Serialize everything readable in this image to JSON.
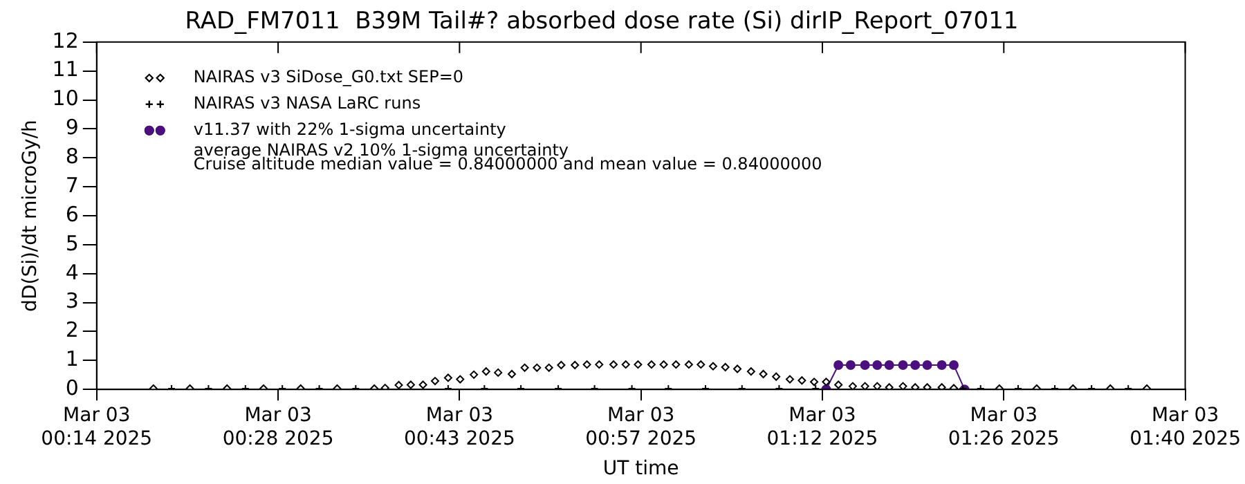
{
  "chart_data": {
    "type": "scatter",
    "title": "RAD_FM7011  B39M Tail#? absorbed dose rate (Si) dirIP_Report_07011",
    "xlabel": "UT time",
    "ylabel": "dD(Si)/dt microGy/h",
    "xlim": [
      "2025-03-03T00:14",
      "2025-03-03T01:40"
    ],
    "xticks": [
      {
        "value": "2025-03-03T00:14",
        "label": "Mar 03\n00:14 2025"
      },
      {
        "value": "2025-03-03T00:28:20",
        "label": "Mar 03\n00:28 2025"
      },
      {
        "value": "2025-03-03T00:42:40",
        "label": "Mar 03\n00:43 2025"
      },
      {
        "value": "2025-03-03T00:57",
        "label": "Mar 03\n00:57 2025"
      },
      {
        "value": "2025-03-03T01:11:20",
        "label": "Mar 03\n01:12 2025"
      },
      {
        "value": "2025-03-03T01:25:40",
        "label": "Mar 03\n01:26 2025"
      },
      {
        "value": "2025-03-03T01:40",
        "label": "Mar 03\n01:40 2025"
      }
    ],
    "ylim": [
      0,
      12
    ],
    "yticks": [
      0,
      1,
      2,
      3,
      4,
      5,
      6,
      7,
      8,
      9,
      10,
      11,
      12
    ],
    "grid": false,
    "legend": "top left",
    "annotations": [
      "average NAIRAS v2 10% 1-sigma uncertainty",
      "Cruise altitude median value = 0.84000000 and mean value = 0.84000000"
    ],
    "series": [
      {
        "name": "NAIRAS v3 SiDose_G0.txt SEP=0",
        "type": "scatter",
        "marker": "diamond",
        "color": "#000000",
        "x": [
          "2025-03-03T00:18:29",
          "2025-03-03T00:21:22",
          "2025-03-03T00:24:18",
          "2025-03-03T00:27:11",
          "2025-03-03T00:30:07",
          "2025-03-03T00:33:00",
          "2025-03-03T00:35:56",
          "2025-03-03T00:36:47",
          "2025-03-03T00:37:52",
          "2025-03-03T00:38:49",
          "2025-03-03T00:39:47",
          "2025-03-03T00:40:44",
          "2025-03-03T00:41:46",
          "2025-03-03T00:42:43",
          "2025-03-03T00:43:48",
          "2025-03-03T00:44:46",
          "2025-03-03T00:45:43",
          "2025-03-03T00:46:48",
          "2025-03-03T00:47:49",
          "2025-03-03T00:48:47",
          "2025-03-03T00:49:44",
          "2025-03-03T00:50:42",
          "2025-03-03T00:51:47",
          "2025-03-03T00:52:44",
          "2025-03-03T00:53:42",
          "2025-03-03T00:54:50",
          "2025-03-03T00:55:48",
          "2025-03-03T00:56:46",
          "2025-03-03T00:57:50",
          "2025-03-03T00:58:48",
          "2025-03-03T00:59:46",
          "2025-03-03T01:00:47",
          "2025-03-03T01:01:44",
          "2025-03-03T01:02:42",
          "2025-03-03T01:03:40",
          "2025-03-03T01:04:37",
          "2025-03-03T01:05:42",
          "2025-03-03T01:06:40",
          "2025-03-03T01:07:41",
          "2025-03-03T01:08:46",
          "2025-03-03T01:09:43",
          "2025-03-03T01:10:41",
          "2025-03-03T01:11:38",
          "2025-03-03T01:12:36",
          "2025-03-03T01:13:44",
          "2025-03-03T01:14:42",
          "2025-03-03T01:15:40",
          "2025-03-03T01:16:37",
          "2025-03-03T01:17:42",
          "2025-03-03T01:18:40",
          "2025-03-03T01:19:37",
          "2025-03-03T01:20:46",
          "2025-03-03T01:21:43",
          "2025-03-03T01:25:19",
          "2025-03-03T01:28:16",
          "2025-03-03T01:31:08",
          "2025-03-03T01:34:05",
          "2025-03-03T01:36:58"
        ],
        "values": [
          0.03,
          0.03,
          0.03,
          0.03,
          0.03,
          0.03,
          0.03,
          0.05,
          0.15,
          0.16,
          0.16,
          0.29,
          0.4,
          0.35,
          0.51,
          0.62,
          0.58,
          0.53,
          0.75,
          0.75,
          0.75,
          0.84,
          0.84,
          0.86,
          0.86,
          0.86,
          0.86,
          0.86,
          0.86,
          0.86,
          0.86,
          0.86,
          0.86,
          0.8,
          0.77,
          0.71,
          0.62,
          0.53,
          0.44,
          0.35,
          0.31,
          0.26,
          0.26,
          0.16,
          0.11,
          0.11,
          0.11,
          0.07,
          0.11,
          0.07,
          0.07,
          0.07,
          0.04,
          0.03,
          0.03,
          0.03,
          0.03,
          0.03
        ]
      },
      {
        "name": "NAIRAS v3 NASA LaRC runs",
        "type": "scatter",
        "marker": "cross",
        "color": "#000000",
        "x": [
          "2025-03-03T00:19:55",
          "2025-03-03T00:22:50",
          "2025-03-03T00:25:45",
          "2025-03-03T00:28:40",
          "2025-03-03T00:31:35",
          "2025-03-03T00:34:28",
          "2025-03-03T00:41:46",
          "2025-03-03T00:44:38",
          "2025-03-03T00:47:31",
          "2025-03-03T00:50:28",
          "2025-03-03T00:53:20",
          "2025-03-03T00:56:17",
          "2025-03-03T00:59:10",
          "2025-03-03T01:02:06",
          "2025-03-03T01:04:59",
          "2025-03-03T01:07:55",
          "2025-03-03T01:10:48",
          "2025-03-03T01:22:26",
          "2025-03-03T01:23:50",
          "2025-03-03T01:26:48",
          "2025-03-03T01:29:42",
          "2025-03-03T01:32:36",
          "2025-03-03T01:35:30"
        ],
        "values": [
          0.03,
          0.03,
          0.03,
          0.03,
          0.03,
          0.03,
          0.03,
          0.03,
          0.03,
          0.03,
          0.03,
          0.03,
          0.03,
          0.03,
          0.03,
          0.03,
          0.03,
          0.03,
          0.03,
          0.03,
          0.03,
          0.03,
          0.03
        ]
      },
      {
        "name": "v11.37 with 22% 1-sigma uncertainty",
        "type": "line",
        "marker": "circle",
        "color": "#4b0f7f",
        "x": [
          "2025-03-03T01:11:38",
          "2025-03-03T01:12:36",
          "2025-03-03T01:13:34",
          "2025-03-03T01:14:42",
          "2025-03-03T01:15:40",
          "2025-03-03T01:16:37",
          "2025-03-03T01:17:42",
          "2025-03-03T01:18:40",
          "2025-03-03T01:19:37",
          "2025-03-03T01:20:46",
          "2025-03-03T01:21:43",
          "2025-03-03T01:22:34"
        ],
        "values": [
          0,
          0.84,
          0.84,
          0.84,
          0.84,
          0.84,
          0.84,
          0.84,
          0.84,
          0.84,
          0.84,
          0
        ]
      }
    ]
  }
}
